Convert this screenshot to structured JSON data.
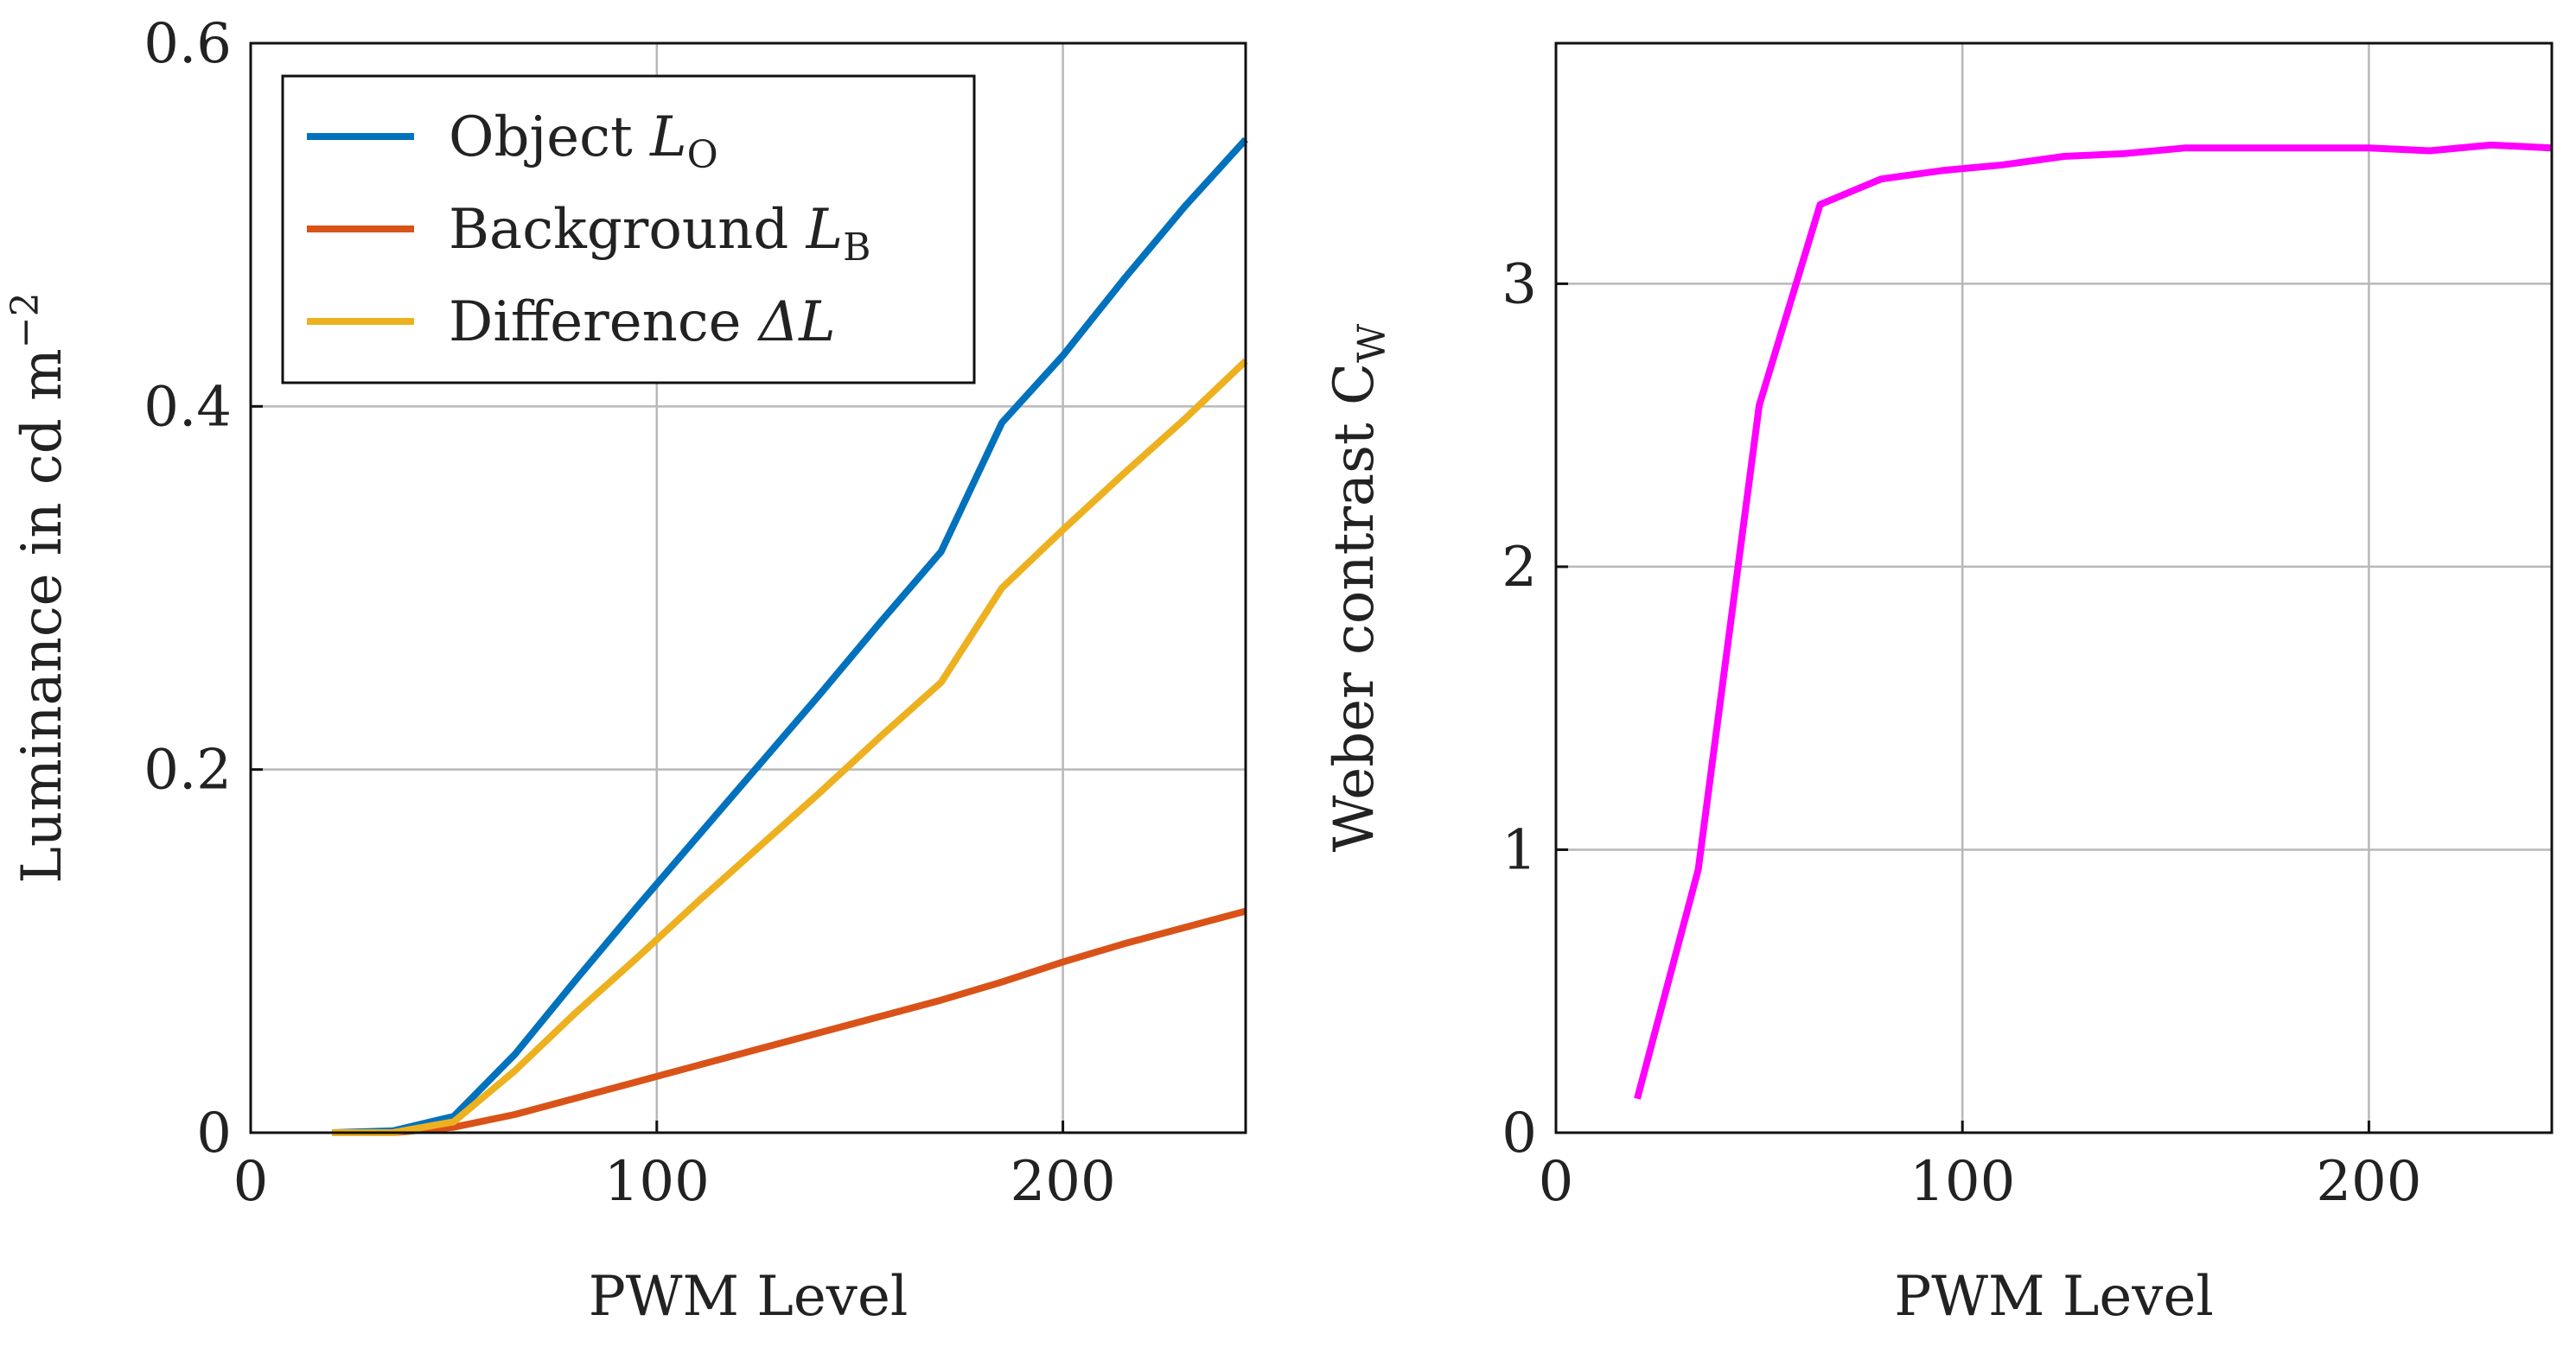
{
  "chart_data": [
    {
      "type": "line",
      "xlabel": "PWM Level",
      "ylabel": {
        "main": "Luminance in cd m",
        "sup": "−2"
      },
      "xlim": [
        0,
        245
      ],
      "ylim": [
        0,
        0.6
      ],
      "x_ticks": [
        0,
        100,
        200
      ],
      "x_tick_labels": [
        "0",
        "100",
        "200"
      ],
      "y_ticks": [
        0,
        0.2,
        0.4,
        0.6
      ],
      "y_tick_labels": [
        "0",
        "0.2",
        "0.4",
        "0.6"
      ],
      "grid": true,
      "legend_position": "top-left",
      "series": [
        {
          "name": "Object",
          "symbol": "L",
          "subscript": "O",
          "color": "#0072bd",
          "x": [
            20,
            35,
            50,
            65,
            80,
            95,
            110,
            125,
            140,
            155,
            170,
            185,
            200,
            215,
            230,
            245
          ],
          "y": [
            0.0,
            0.001,
            0.009,
            0.043,
            0.084,
            0.124,
            0.163,
            0.202,
            0.241,
            0.281,
            0.32,
            0.391,
            0.428,
            0.47,
            0.51,
            0.547
          ]
        },
        {
          "name": "Background",
          "symbol": "L",
          "subscript": "B",
          "color": "#d95319",
          "x": [
            20,
            35,
            50,
            65,
            80,
            95,
            110,
            125,
            140,
            155,
            170,
            185,
            200,
            215,
            230,
            245
          ],
          "y": [
            0.0,
            0.0,
            0.003,
            0.01,
            0.019,
            0.028,
            0.037,
            0.046,
            0.055,
            0.064,
            0.073,
            0.083,
            0.094,
            0.104,
            0.113,
            0.122
          ]
        },
        {
          "name": "Difference",
          "symbol": "ΔL",
          "subscript": "",
          "color": "#edb120",
          "x": [
            20,
            35,
            50,
            65,
            80,
            95,
            110,
            125,
            140,
            155,
            170,
            185,
            200,
            215,
            230,
            245
          ],
          "y": [
            0.0,
            0.0,
            0.006,
            0.034,
            0.066,
            0.096,
            0.127,
            0.157,
            0.187,
            0.218,
            0.248,
            0.3,
            0.332,
            0.363,
            0.393,
            0.425
          ]
        }
      ]
    },
    {
      "type": "line",
      "xlabel": "PWM Level",
      "ylabel": {
        "main": "Weber contrast C",
        "sub": "W"
      },
      "xlim": [
        0,
        245
      ],
      "ylim": [
        0,
        3.85
      ],
      "x_ticks": [
        0,
        100,
        200
      ],
      "x_tick_labels": [
        "0",
        "100",
        "200"
      ],
      "y_ticks": [
        0,
        1,
        2,
        3
      ],
      "y_tick_labels": [
        "0",
        "1",
        "2",
        "3"
      ],
      "grid": true,
      "series": [
        {
          "color": "#ff00ff",
          "x": [
            20,
            35,
            50,
            65,
            80,
            95,
            110,
            125,
            140,
            155,
            170,
            185,
            200,
            215,
            230,
            245
          ],
          "y": [
            0.12,
            0.93,
            2.57,
            3.28,
            3.37,
            3.4,
            3.42,
            3.45,
            3.46,
            3.48,
            3.48,
            3.48,
            3.48,
            3.47,
            3.49,
            3.48
          ]
        }
      ]
    }
  ]
}
